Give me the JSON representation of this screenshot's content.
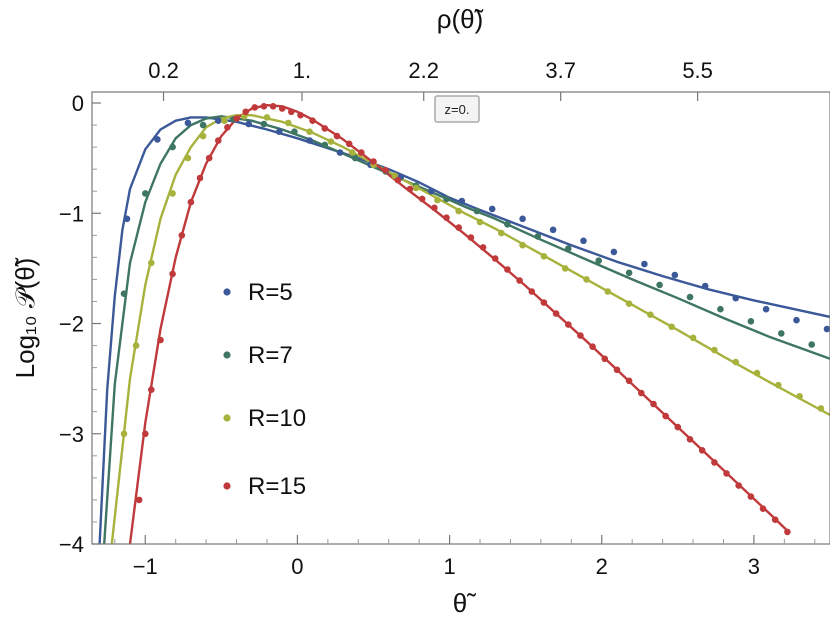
{
  "chart_data": {
    "type": "scatter",
    "xlabel": "θ̃",
    "ylabel": "Log₁₀ 𝒫(θ̃)",
    "top_axis_label": "ρ(θ̃)",
    "xlim": [
      -1.35,
      3.5
    ],
    "ylim": [
      -4,
      0.1
    ],
    "x_ticks": [
      -1,
      0,
      1,
      2,
      3
    ],
    "x_tick_labels": [
      "−1",
      "0",
      "1",
      "2",
      "3"
    ],
    "y_ticks": [
      0,
      -1,
      -2,
      -3,
      -4
    ],
    "y_tick_labels": [
      "0",
      "−1",
      "−2",
      "−3",
      "−4"
    ],
    "top_ticks_x": [
      -0.88,
      0.03,
      0.83,
      1.73,
      2.63
    ],
    "top_tick_labels": [
      "0.2",
      "1.",
      "2.2",
      "3.7",
      "5.5"
    ],
    "annotation": "z=0.",
    "legend_position": "center-left",
    "grid": false,
    "series": [
      {
        "name": "R=5",
        "color": "#3b5898",
        "curve": [
          [
            -1.3,
            -4
          ],
          [
            -1.25,
            -2.6
          ],
          [
            -1.2,
            -1.75
          ],
          [
            -1.15,
            -1.15
          ],
          [
            -1.1,
            -0.78
          ],
          [
            -1.0,
            -0.42
          ],
          [
            -0.9,
            -0.24
          ],
          [
            -0.8,
            -0.16
          ],
          [
            -0.7,
            -0.13
          ],
          [
            -0.6,
            -0.13
          ],
          [
            -0.4,
            -0.17
          ],
          [
            -0.2,
            -0.24
          ],
          [
            0,
            -0.32
          ],
          [
            0.2,
            -0.41
          ],
          [
            0.4,
            -0.5
          ],
          [
            0.6,
            -0.6
          ],
          [
            0.8,
            -0.72
          ],
          [
            1.0,
            -0.86
          ],
          [
            1.2,
            -0.97
          ],
          [
            1.5,
            -1.13
          ],
          [
            1.8,
            -1.29
          ],
          [
            2.1,
            -1.44
          ],
          [
            2.4,
            -1.57
          ],
          [
            2.7,
            -1.69
          ],
          [
            3.0,
            -1.79
          ],
          [
            3.3,
            -1.88
          ],
          [
            3.5,
            -1.94
          ]
        ],
        "points": [
          [
            -1.12,
            -1.05
          ],
          [
            -0.92,
            -0.33
          ],
          [
            -0.72,
            -0.18
          ],
          [
            -0.52,
            -0.16
          ],
          [
            -0.32,
            -0.19
          ],
          [
            -0.12,
            -0.26
          ],
          [
            0.08,
            -0.34
          ],
          [
            0.28,
            -0.45
          ],
          [
            0.48,
            -0.56
          ],
          [
            0.68,
            -0.67
          ],
          [
            0.88,
            -0.8
          ],
          [
            1.08,
            -0.89
          ],
          [
            1.28,
            -0.96
          ],
          [
            1.48,
            -1.05
          ],
          [
            1.68,
            -1.15
          ],
          [
            1.88,
            -1.25
          ],
          [
            2.08,
            -1.35
          ],
          [
            2.28,
            -1.46
          ],
          [
            2.48,
            -1.56
          ],
          [
            2.68,
            -1.66
          ],
          [
            2.88,
            -1.77
          ],
          [
            3.08,
            -1.87
          ],
          [
            3.28,
            -1.97
          ],
          [
            3.48,
            -2.05
          ]
        ]
      },
      {
        "name": "R=7",
        "color": "#3e7563",
        "curve": [
          [
            -1.27,
            -4
          ],
          [
            -1.2,
            -2.55
          ],
          [
            -1.1,
            -1.45
          ],
          [
            -1.0,
            -0.9
          ],
          [
            -0.9,
            -0.55
          ],
          [
            -0.8,
            -0.32
          ],
          [
            -0.7,
            -0.2
          ],
          [
            -0.6,
            -0.14
          ],
          [
            -0.5,
            -0.12
          ],
          [
            -0.3,
            -0.16
          ],
          [
            -0.1,
            -0.24
          ],
          [
            0.1,
            -0.34
          ],
          [
            0.3,
            -0.46
          ],
          [
            0.5,
            -0.58
          ],
          [
            0.7,
            -0.7
          ],
          [
            0.9,
            -0.82
          ],
          [
            1.1,
            -0.94
          ],
          [
            1.3,
            -1.05
          ],
          [
            1.6,
            -1.24
          ],
          [
            1.9,
            -1.42
          ],
          [
            2.2,
            -1.6
          ],
          [
            2.5,
            -1.77
          ],
          [
            2.8,
            -1.95
          ],
          [
            3.1,
            -2.12
          ],
          [
            3.3,
            -2.22
          ],
          [
            3.5,
            -2.32
          ]
        ],
        "points": [
          [
            -1.14,
            -1.73
          ],
          [
            -1.0,
            -0.82
          ],
          [
            -0.82,
            -0.4
          ],
          [
            -0.62,
            -0.2
          ],
          [
            -0.42,
            -0.15
          ],
          [
            -0.22,
            -0.19
          ],
          [
            -0.02,
            -0.26
          ],
          [
            0.18,
            -0.38
          ],
          [
            0.38,
            -0.5
          ],
          [
            0.58,
            -0.62
          ],
          [
            0.78,
            -0.75
          ],
          [
            0.98,
            -0.87
          ],
          [
            1.18,
            -0.98
          ],
          [
            1.38,
            -1.1
          ],
          [
            1.58,
            -1.21
          ],
          [
            1.78,
            -1.32
          ],
          [
            1.98,
            -1.43
          ],
          [
            2.18,
            -1.54
          ],
          [
            2.38,
            -1.65
          ],
          [
            2.58,
            -1.76
          ],
          [
            2.78,
            -1.87
          ],
          [
            2.98,
            -1.98
          ],
          [
            3.18,
            -2.09
          ],
          [
            3.38,
            -2.19
          ]
        ]
      },
      {
        "name": "R=10",
        "color": "#a7b23c",
        "curve": [
          [
            -1.22,
            -4
          ],
          [
            -1.1,
            -2.5
          ],
          [
            -1.0,
            -1.65
          ],
          [
            -0.9,
            -1.05
          ],
          [
            -0.8,
            -0.65
          ],
          [
            -0.7,
            -0.4
          ],
          [
            -0.6,
            -0.22
          ],
          [
            -0.5,
            -0.14
          ],
          [
            -0.4,
            -0.11
          ],
          [
            -0.3,
            -0.11
          ],
          [
            -0.1,
            -0.17
          ],
          [
            0.1,
            -0.27
          ],
          [
            0.3,
            -0.4
          ],
          [
            0.5,
            -0.55
          ],
          [
            0.7,
            -0.7
          ],
          [
            0.9,
            -0.85
          ],
          [
            1.1,
            -1.0
          ],
          [
            1.3,
            -1.14
          ],
          [
            1.6,
            -1.37
          ],
          [
            1.9,
            -1.6
          ],
          [
            2.2,
            -1.83
          ],
          [
            2.5,
            -2.06
          ],
          [
            2.8,
            -2.3
          ],
          [
            3.1,
            -2.53
          ],
          [
            3.3,
            -2.68
          ],
          [
            3.5,
            -2.83
          ]
        ],
        "points": [
          [
            -1.14,
            -3.0
          ],
          [
            -1.06,
            -2.2
          ],
          [
            -0.96,
            -1.45
          ],
          [
            -0.82,
            -0.82
          ],
          [
            -0.72,
            -0.5
          ],
          [
            -0.62,
            -0.3
          ],
          [
            -0.48,
            -0.16
          ],
          [
            -0.35,
            -0.12
          ],
          [
            -0.2,
            -0.13
          ],
          [
            -0.06,
            -0.18
          ],
          [
            0.08,
            -0.26
          ],
          [
            0.22,
            -0.35
          ],
          [
            0.36,
            -0.45
          ],
          [
            0.5,
            -0.56
          ],
          [
            0.64,
            -0.66
          ],
          [
            0.78,
            -0.77
          ],
          [
            0.92,
            -0.88
          ],
          [
            1.06,
            -0.98
          ],
          [
            1.2,
            -1.08
          ],
          [
            1.34,
            -1.18
          ],
          [
            1.48,
            -1.29
          ],
          [
            1.62,
            -1.39
          ],
          [
            1.76,
            -1.5
          ],
          [
            1.9,
            -1.6
          ],
          [
            2.04,
            -1.71
          ],
          [
            2.18,
            -1.82
          ],
          [
            2.32,
            -1.92
          ],
          [
            2.46,
            -2.03
          ],
          [
            2.6,
            -2.13
          ],
          [
            2.74,
            -2.24
          ],
          [
            2.88,
            -2.35
          ],
          [
            3.02,
            -2.45
          ],
          [
            3.16,
            -2.56
          ],
          [
            3.3,
            -2.66
          ],
          [
            3.44,
            -2.77
          ]
        ]
      },
      {
        "name": "R=15",
        "color": "#c0393b",
        "curve": [
          [
            -1.1,
            -4
          ],
          [
            -1.0,
            -2.9
          ],
          [
            -0.9,
            -2.05
          ],
          [
            -0.8,
            -1.4
          ],
          [
            -0.7,
            -0.9
          ],
          [
            -0.6,
            -0.55
          ],
          [
            -0.5,
            -0.3
          ],
          [
            -0.4,
            -0.14
          ],
          [
            -0.3,
            -0.05
          ],
          [
            -0.2,
            -0.02
          ],
          [
            -0.1,
            -0.03
          ],
          [
            0.0,
            -0.08
          ],
          [
            0.1,
            -0.15
          ],
          [
            0.3,
            -0.33
          ],
          [
            0.5,
            -0.54
          ],
          [
            0.7,
            -0.76
          ],
          [
            0.9,
            -0.97
          ],
          [
            1.1,
            -1.19
          ],
          [
            1.3,
            -1.42
          ],
          [
            1.5,
            -1.66
          ],
          [
            1.7,
            -1.91
          ],
          [
            1.9,
            -2.16
          ],
          [
            2.1,
            -2.42
          ],
          [
            2.3,
            -2.68
          ],
          [
            2.5,
            -2.94
          ],
          [
            2.7,
            -3.2
          ],
          [
            2.9,
            -3.46
          ],
          [
            3.1,
            -3.72
          ],
          [
            3.22,
            -3.88
          ]
        ],
        "points": [
          [
            -1.04,
            -3.6
          ],
          [
            -1.0,
            -3.0
          ],
          [
            -0.96,
            -2.6
          ],
          [
            -0.9,
            -2.15
          ],
          [
            -0.82,
            -1.55
          ],
          [
            -0.76,
            -1.2
          ],
          [
            -0.7,
            -0.9
          ],
          [
            -0.64,
            -0.68
          ],
          [
            -0.58,
            -0.5
          ],
          [
            -0.52,
            -0.34
          ],
          [
            -0.46,
            -0.22
          ],
          [
            -0.4,
            -0.14
          ],
          [
            -0.34,
            -0.08
          ],
          [
            -0.28,
            -0.04
          ],
          [
            -0.22,
            -0.03
          ],
          [
            -0.16,
            -0.03
          ],
          [
            -0.1,
            -0.05
          ],
          [
            -0.04,
            -0.08
          ],
          [
            0.02,
            -0.11
          ],
          [
            0.1,
            -0.16
          ],
          [
            0.18,
            -0.23
          ],
          [
            0.26,
            -0.3
          ],
          [
            0.34,
            -0.37
          ],
          [
            0.42,
            -0.45
          ],
          [
            0.5,
            -0.53
          ],
          [
            0.58,
            -0.61
          ],
          [
            0.66,
            -0.7
          ],
          [
            0.74,
            -0.78
          ],
          [
            0.82,
            -0.87
          ],
          [
            0.9,
            -0.95
          ],
          [
            0.98,
            -1.04
          ],
          [
            1.06,
            -1.13
          ],
          [
            1.14,
            -1.22
          ],
          [
            1.22,
            -1.31
          ],
          [
            1.3,
            -1.41
          ],
          [
            1.38,
            -1.51
          ],
          [
            1.46,
            -1.61
          ],
          [
            1.54,
            -1.71
          ],
          [
            1.62,
            -1.81
          ],
          [
            1.7,
            -1.91
          ],
          [
            1.78,
            -2.01
          ],
          [
            1.86,
            -2.11
          ],
          [
            1.94,
            -2.21
          ],
          [
            2.02,
            -2.32
          ],
          [
            2.1,
            -2.42
          ],
          [
            2.18,
            -2.52
          ],
          [
            2.26,
            -2.63
          ],
          [
            2.34,
            -2.73
          ],
          [
            2.42,
            -2.84
          ],
          [
            2.5,
            -2.94
          ],
          [
            2.58,
            -3.05
          ],
          [
            2.66,
            -3.15
          ],
          [
            2.74,
            -3.26
          ],
          [
            2.82,
            -3.36
          ],
          [
            2.9,
            -3.47
          ],
          [
            2.98,
            -3.57
          ],
          [
            3.06,
            -3.68
          ],
          [
            3.14,
            -3.78
          ],
          [
            3.22,
            -3.89
          ]
        ]
      }
    ]
  }
}
